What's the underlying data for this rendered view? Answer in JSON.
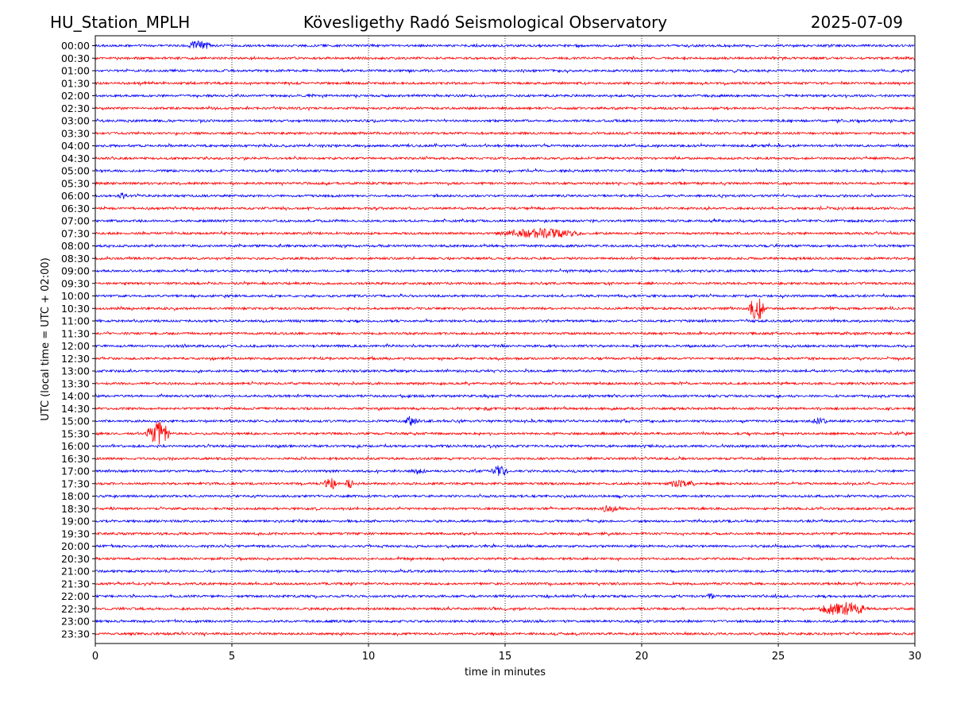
{
  "header": {
    "station": "HU_Station_MPLH",
    "observatory": "Kövesligethy Radó Seismological Observatory",
    "date": "2025-07-09"
  },
  "colors": {
    "even_trace": "#0000ff",
    "odd_trace": "#ff0000",
    "grid": "#000000",
    "frame": "#000000"
  },
  "chart_data": {
    "type": "line",
    "title": "Kövesligethy Radó Seismological Observatory",
    "xlabel": "time in minutes",
    "ylabel": "UTC (local time = UTC + 02:00)",
    "xlim": [
      0,
      30
    ],
    "xticks": [
      0,
      5,
      10,
      15,
      20,
      25,
      30
    ],
    "grid": "vertical-dotted",
    "rows": [
      "00:00",
      "00:30",
      "01:00",
      "01:30",
      "02:00",
      "02:30",
      "03:00",
      "03:30",
      "04:00",
      "04:30",
      "05:00",
      "05:30",
      "06:00",
      "06:30",
      "07:00",
      "07:30",
      "08:00",
      "08:30",
      "09:00",
      "09:30",
      "10:00",
      "10:30",
      "11:00",
      "11:30",
      "12:00",
      "12:30",
      "13:00",
      "13:30",
      "14:00",
      "14:30",
      "15:00",
      "15:30",
      "16:00",
      "16:30",
      "17:00",
      "17:30",
      "18:00",
      "18:30",
      "19:00",
      "19:30",
      "20:00",
      "20:30",
      "21:00",
      "21:30",
      "22:00",
      "22:30",
      "23:00",
      "23:30"
    ],
    "events": [
      {
        "row": "00:00",
        "t_min": 3.8,
        "duration_min": 0.6,
        "relative_amplitude": 3
      },
      {
        "row": "06:00",
        "t_min": 1.0,
        "duration_min": 0.2,
        "relative_amplitude": 2
      },
      {
        "row": "07:30",
        "t_min": 16.3,
        "duration_min": 2.0,
        "relative_amplitude": 3
      },
      {
        "row": "10:30",
        "t_min": 24.2,
        "duration_min": 0.4,
        "relative_amplitude": 9
      },
      {
        "row": "15:00",
        "t_min": 11.5,
        "duration_min": 0.4,
        "relative_amplitude": 3
      },
      {
        "row": "15:00",
        "t_min": 26.5,
        "duration_min": 0.4,
        "relative_amplitude": 1.5
      },
      {
        "row": "15:30",
        "t_min": 2.3,
        "duration_min": 0.6,
        "relative_amplitude": 9
      },
      {
        "row": "17:00",
        "t_min": 11.8,
        "duration_min": 0.4,
        "relative_amplitude": 1.5
      },
      {
        "row": "17:00",
        "t_min": 14.8,
        "duration_min": 0.4,
        "relative_amplitude": 4
      },
      {
        "row": "17:30",
        "t_min": 8.6,
        "duration_min": 0.3,
        "relative_amplitude": 4
      },
      {
        "row": "17:30",
        "t_min": 9.3,
        "duration_min": 0.2,
        "relative_amplitude": 3
      },
      {
        "row": "17:30",
        "t_min": 21.5,
        "duration_min": 0.7,
        "relative_amplitude": 2
      },
      {
        "row": "18:30",
        "t_min": 18.8,
        "duration_min": 0.5,
        "relative_amplitude": 2
      },
      {
        "row": "22:00",
        "t_min": 22.5,
        "duration_min": 0.2,
        "relative_amplitude": 2
      },
      {
        "row": "22:30",
        "t_min": 27.4,
        "duration_min": 1.2,
        "relative_amplitude": 5
      }
    ]
  }
}
